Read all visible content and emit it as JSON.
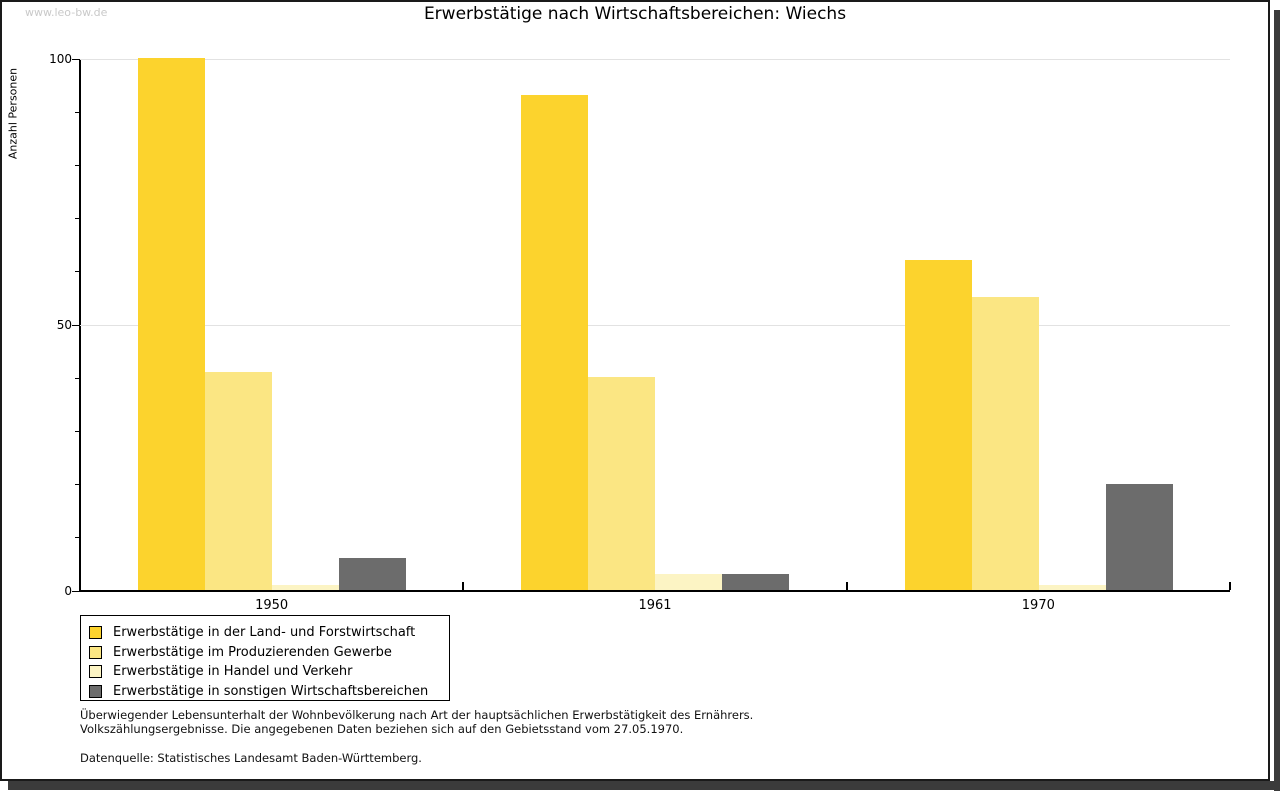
{
  "watermark": "www.leo-bw.de",
  "title": "Erwerbstätige nach Wirtschaftsbereichen: Wiechs",
  "chart_data": {
    "type": "bar",
    "title": "Erwerbstätige nach Wirtschaftsbereichen: Wiechs",
    "xlabel": "",
    "ylabel": "Anzahl Personen",
    "ylim": [
      0,
      100
    ],
    "yticks_major": [
      0,
      50,
      100
    ],
    "ytick_minor_step": 10,
    "grid": "horizontal gridlines at 50 and 100",
    "legend_position": "bottom-left",
    "categories": [
      "1950",
      "1961",
      "1970"
    ],
    "series": [
      {
        "key": "land-und-forstwirtschaft",
        "name": "Erwerbstätige in der Land- und Forstwirtschaft",
        "color": "#FCD32D",
        "values": [
          100,
          93,
          62
        ]
      },
      {
        "key": "produzierendes-gewerbe",
        "name": "Erwerbstätige im Produzierenden Gewerbe",
        "color": "#FBE683",
        "values": [
          41,
          40,
          55
        ]
      },
      {
        "key": "handel-und-verkehr",
        "name": "Erwerbstätige in Handel und Verkehr",
        "color": "#FCF4C4",
        "values": [
          1,
          3,
          1
        ]
      },
      {
        "key": "sonstige-wirtschaftsbereiche",
        "name": "Erwerbstätige in sonstigen Wirtschaftsbereichen",
        "color": "#6C6C6C",
        "values": [
          6,
          3,
          20
        ]
      }
    ]
  },
  "footnotes": {
    "line1": "Überwiegender Lebensunterhalt der Wohnbevölkerung nach Art der hauptsächlichen Erwerbstätigkeit des Ernährers.",
    "line2": "Volkszählungsergebnisse. Die angegebenen Daten beziehen sich auf den Gebietsstand vom 27.05.1970.",
    "source": "Datenquelle: Statistisches Landesamt Baden-Württemberg."
  },
  "colors": {
    "axis": "#000000",
    "grid": "#E2E2E2",
    "watermark": "#C9C9C9",
    "frame_shadow": "#3B3B3B",
    "background": "#FFFFFF"
  }
}
